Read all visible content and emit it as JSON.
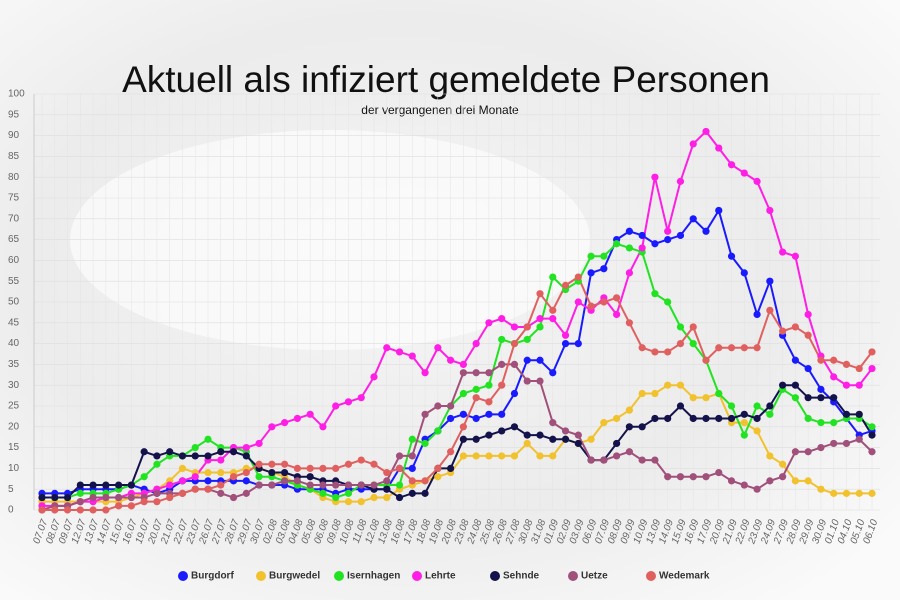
{
  "chart_data": {
    "type": "line",
    "title": "Aktuell als infiziert gemeldete Personen",
    "subtitle": "der vergangenen drei Monate",
    "categories": [
      "07.07",
      "08.07",
      "09.07",
      "12.07",
      "13.07",
      "14.07",
      "15.07",
      "16.07",
      "19.07",
      "20.07",
      "21.07",
      "22.07",
      "23.07",
      "26.07",
      "27.07",
      "28.07",
      "29.07",
      "30.07",
      "02.08",
      "03.08",
      "04.08",
      "05.08",
      "06.08",
      "09.08",
      "10.08",
      "11.08",
      "12.08",
      "13.08",
      "16.08",
      "17.08",
      "18.08",
      "19.08",
      "20.08",
      "23.08",
      "24.08",
      "25.08",
      "26.08",
      "27.08",
      "30.08",
      "31.08",
      "01.09",
      "02.09",
      "03.09",
      "06.09",
      "07.09",
      "08.09",
      "09.09",
      "10.09",
      "13.09",
      "14.09",
      "15.09",
      "16.09",
      "17.09",
      "20.09",
      "21.09",
      "22.09",
      "23.09",
      "24.09",
      "27.09",
      "28.09",
      "29.09",
      "30.09",
      "01.10",
      "04.10",
      "05.10",
      "06.10"
    ],
    "series": [
      {
        "name": "Burgdorf",
        "color": "#1a1aff",
        "values": [
          4,
          4,
          4,
          5,
          5,
          5,
          5,
          6,
          5,
          4,
          5,
          7,
          7,
          7,
          7,
          7,
          7,
          6,
          6,
          6,
          5,
          5,
          5,
          4,
          5,
          5,
          5,
          5,
          10,
          10,
          17,
          19,
          22,
          23,
          22,
          23,
          23,
          28,
          36,
          36,
          33,
          40,
          40,
          57,
          58,
          65,
          67,
          66,
          64,
          65,
          66,
          70,
          67,
          72,
          61,
          57,
          47,
          55,
          42,
          36,
          34,
          29,
          26,
          22,
          18,
          19
        ]
      },
      {
        "name": "Burgwedel",
        "color": "#f2c12e",
        "values": [
          2,
          2,
          2,
          2,
          2,
          2,
          2,
          3,
          4,
          5,
          7,
          10,
          9,
          9,
          9,
          9,
          10,
          10,
          9,
          8,
          6,
          5,
          3,
          2,
          2,
          2,
          3,
          3,
          5,
          6,
          7,
          8,
          9,
          13,
          13,
          13,
          13,
          13,
          16,
          13,
          13,
          17,
          16,
          17,
          21,
          22,
          24,
          28,
          28,
          30,
          30,
          27,
          27,
          28,
          21,
          21,
          19,
          13,
          11,
          7,
          7,
          5,
          4,
          4,
          4,
          4
        ]
      },
      {
        "name": "Isernhagen",
        "color": "#22e322",
        "values": [
          3,
          3,
          3,
          4,
          4,
          4,
          5,
          6,
          8,
          11,
          13,
          13,
          15,
          17,
          15,
          15,
          14,
          8,
          8,
          7,
          6,
          5,
          4,
          3,
          4,
          6,
          6,
          6,
          6,
          17,
          16,
          19,
          25,
          28,
          29,
          30,
          41,
          40,
          41,
          44,
          56,
          53,
          55,
          61,
          61,
          64,
          63,
          62,
          52,
          50,
          44,
          40,
          36,
          28,
          25,
          18,
          25,
          23,
          29,
          27,
          22,
          21,
          21,
          22,
          22,
          20
        ]
      },
      {
        "name": "Lehrte",
        "color": "#ff1ee6",
        "values": [
          1,
          1,
          1,
          2,
          2,
          3,
          3,
          4,
          4,
          5,
          6,
          7,
          8,
          12,
          12,
          15,
          15,
          16,
          20,
          21,
          22,
          23,
          20,
          25,
          26,
          27,
          32,
          39,
          38,
          37,
          33,
          39,
          36,
          35,
          40,
          45,
          46,
          44,
          44,
          46,
          46,
          42,
          50,
          48,
          51,
          47,
          57,
          63,
          80,
          67,
          79,
          88,
          91,
          87,
          83,
          81,
          79,
          72,
          62,
          61,
          47,
          37,
          32,
          30,
          30,
          34
        ]
      },
      {
        "name": "Sehnde",
        "color": "#14124a",
        "values": [
          3,
          3,
          3,
          6,
          6,
          6,
          6,
          6,
          14,
          13,
          14,
          13,
          13,
          13,
          14,
          14,
          13,
          10,
          9,
          9,
          8,
          8,
          7,
          7,
          6,
          6,
          5,
          5,
          3,
          4,
          4,
          10,
          10,
          17,
          17,
          18,
          19,
          20,
          18,
          18,
          17,
          17,
          16,
          12,
          12,
          16,
          20,
          20,
          22,
          22,
          25,
          22,
          22,
          22,
          22,
          23,
          22,
          25,
          30,
          30,
          27,
          27,
          27,
          23,
          23,
          18
        ]
      },
      {
        "name": "Uetze",
        "color": "#a0507a",
        "values": [
          0,
          1,
          1,
          2,
          3,
          3,
          3,
          3,
          3,
          4,
          4,
          4,
          5,
          5,
          4,
          3,
          4,
          6,
          6,
          7,
          7,
          6,
          6,
          6,
          6,
          6,
          6,
          7,
          13,
          13,
          23,
          25,
          25,
          33,
          33,
          33,
          35,
          35,
          31,
          31,
          21,
          19,
          18,
          12,
          12,
          13,
          14,
          12,
          12,
          8,
          8,
          8,
          8,
          9,
          7,
          6,
          5,
          7,
          8,
          14,
          14,
          15,
          16,
          16,
          17,
          14
        ]
      },
      {
        "name": "Wedemark",
        "color": "#e06060",
        "values": [
          0,
          0,
          0,
          0,
          0,
          0,
          1,
          1,
          2,
          2,
          3,
          4,
          5,
          5,
          6,
          8,
          9,
          11,
          11,
          11,
          10,
          10,
          10,
          10,
          11,
          12,
          11,
          9,
          10,
          7,
          7,
          10,
          14,
          20,
          27,
          26,
          30,
          40,
          44,
          52,
          48,
          54,
          56,
          49,
          50,
          51,
          45,
          39,
          38,
          38,
          40,
          44,
          36,
          39,
          39,
          39,
          39,
          48,
          43,
          44,
          42,
          36,
          36,
          35,
          34,
          38
        ]
      }
    ],
    "ylim": [
      0,
      100
    ],
    "yticks": [
      0,
      5,
      10,
      15,
      20,
      25,
      30,
      35,
      40,
      45,
      50,
      55,
      60,
      65,
      70,
      75,
      80,
      85,
      90,
      95,
      100
    ],
    "grid": true,
    "legend": "bottom"
  }
}
